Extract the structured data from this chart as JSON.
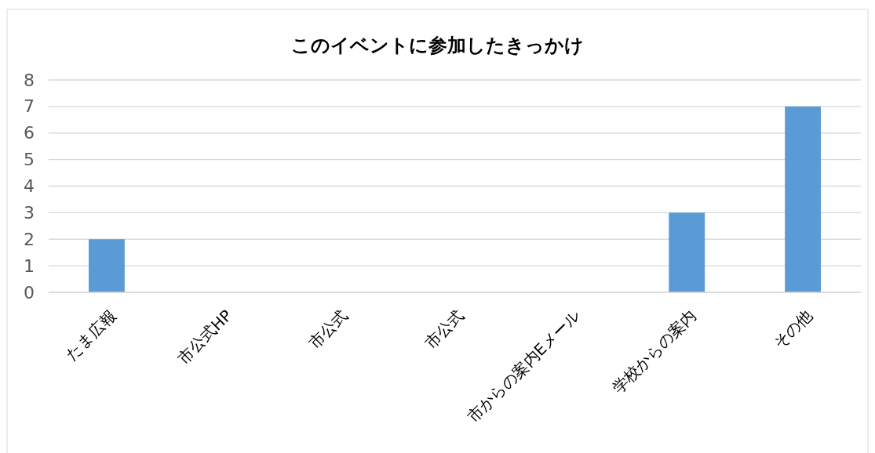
{
  "chart_data": {
    "type": "bar",
    "title": "このイベントに参加したきっかけ",
    "categories": [
      "たま広報",
      "市公式HP",
      "市公式",
      "市公式",
      "市からの案内Eメール",
      "学校からの案内",
      "その他"
    ],
    "values": [
      2,
      0,
      0,
      0,
      0,
      3,
      7
    ],
    "color": "#5b9bd5",
    "ylim": [
      0,
      8
    ],
    "yticks": [
      0,
      1,
      2,
      3,
      4,
      5,
      6,
      7,
      8
    ],
    "grid": "y"
  }
}
